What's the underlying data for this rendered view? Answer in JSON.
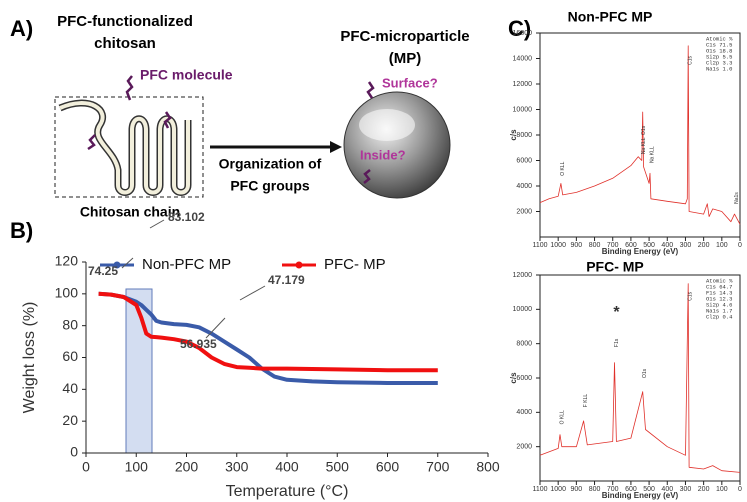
{
  "panels": {
    "a": "A)",
    "b": "B)",
    "c": "C)"
  },
  "diagram": {
    "title_lines": [
      "PFC-functionalized",
      "chitosan"
    ],
    "pfc_molecule": "PFC molecule",
    "chain": "Chitosan chain",
    "arrow_lines": [
      "Organization of",
      "PFC groups"
    ],
    "particle_lines": [
      "PFC-microparticle",
      "(MP)"
    ],
    "surface": "Surface?",
    "inside": "Inside?"
  },
  "chart_data": [
    {
      "type": "line",
      "xlabel": "Temperature (°C)",
      "ylabel": "Weight loss (%)",
      "x": [
        25,
        50,
        75,
        100,
        110,
        120,
        130,
        140,
        150,
        175,
        200,
        225,
        250,
        275,
        300,
        325,
        350,
        375,
        400,
        450,
        500,
        600,
        700
      ],
      "series": [
        {
          "name": "Non-PFC MP",
          "color": "#3a5ba9",
          "values": [
            100,
            99.5,
            98,
            95,
            93,
            90,
            87,
            83,
            82,
            81,
            80.5,
            79,
            75,
            70,
            65,
            60,
            53,
            48,
            46,
            45,
            44.5,
            44,
            44
          ]
        },
        {
          "name": "PFC- MP",
          "color": "#f01010",
          "values": [
            100,
            99.5,
            98,
            93,
            85,
            75,
            73,
            72.8,
            72.5,
            71.5,
            70,
            66,
            60,
            56,
            54,
            53.5,
            53,
            53,
            53,
            52.8,
            52.5,
            52,
            52
          ]
        }
      ],
      "xlim": [
        0,
        800
      ],
      "xticks": [
        0,
        100,
        200,
        300,
        400,
        500,
        600,
        700,
        800
      ],
      "ylim": [
        0,
        120
      ],
      "yticks": [
        0,
        20,
        40,
        60,
        80,
        100,
        120
      ],
      "annotations": [
        "83.102",
        "74.25",
        "56.935",
        "47.179"
      ]
    },
    {
      "type": "line",
      "title": "Non-PFC MP",
      "xlabel": "Binding Energy (eV)",
      "ylabel": "c/s",
      "x": [
        1100,
        1050,
        1000,
        985,
        975,
        900,
        800,
        700,
        600,
        560,
        540,
        535,
        530,
        500,
        495,
        490,
        400,
        300,
        290,
        285,
        280,
        200,
        180,
        170,
        150,
        100,
        50,
        30,
        0
      ],
      "series": [
        {
          "name": "Non-PFC MP",
          "color": "#e0302a",
          "values": [
            2700,
            3000,
            3200,
            4200,
            3300,
            3500,
            4000,
            4600,
            5600,
            6300,
            6000,
            9800,
            5500,
            4200,
            5000,
            3000,
            2800,
            2600,
            3000,
            15000,
            2000,
            1800,
            2600,
            1600,
            2200,
            2000,
            1200,
            1800,
            1000
          ]
        }
      ],
      "xlim": [
        1100,
        0
      ],
      "xticks": [
        1100,
        1000,
        900,
        800,
        700,
        600,
        500,
        400,
        300,
        200,
        100,
        0
      ],
      "ylim": [
        0,
        16000
      ],
      "yticks": [
        2000,
        4000,
        6000,
        8000,
        10000,
        12000,
        14000,
        16000
      ],
      "peaks": [
        "C1s",
        "O1s",
        "Na KLL",
        "Na KLL",
        "O KLL",
        "Na1s"
      ],
      "atomic": [
        "Atomic %",
        "C1s  71.5",
        "O1s  18.8",
        "Si2p  5.5",
        "Cl2p  3.3",
        "Na1s  1.0"
      ]
    },
    {
      "type": "line",
      "title": "PFC- MP",
      "xlabel": "Binding Energy (eV)",
      "ylabel": "c/s",
      "x": [
        1100,
        1000,
        990,
        980,
        900,
        860,
        840,
        700,
        690,
        680,
        600,
        535,
        520,
        400,
        300,
        285,
        280,
        200,
        150,
        100,
        0
      ],
      "series": [
        {
          "name": "PFC- MP",
          "color": "#e0302a",
          "values": [
            1500,
            1900,
            2700,
            2000,
            2000,
            3500,
            2100,
            2300,
            6900,
            2300,
            2500,
            5200,
            3000,
            2000,
            1500,
            11500,
            800,
            700,
            900,
            600,
            500
          ]
        }
      ],
      "xlim": [
        1100,
        0
      ],
      "xticks": [
        1100,
        1000,
        900,
        800,
        700,
        600,
        500,
        400,
        300,
        200,
        100,
        0
      ],
      "ylim": [
        0,
        12000
      ],
      "yticks": [
        2000,
        4000,
        6000,
        8000,
        10000,
        12000
      ],
      "peaks": [
        "C1s",
        "O1s",
        "F1s",
        "F KLL",
        "O KLL",
        "*"
      ],
      "atomic": [
        "Atomic %",
        "C1s  64.7",
        "F1s  14.3",
        "O1s  12.3",
        "Si2p  4.6",
        "Na1s  1.7",
        "Cl2p  0.4"
      ]
    }
  ]
}
